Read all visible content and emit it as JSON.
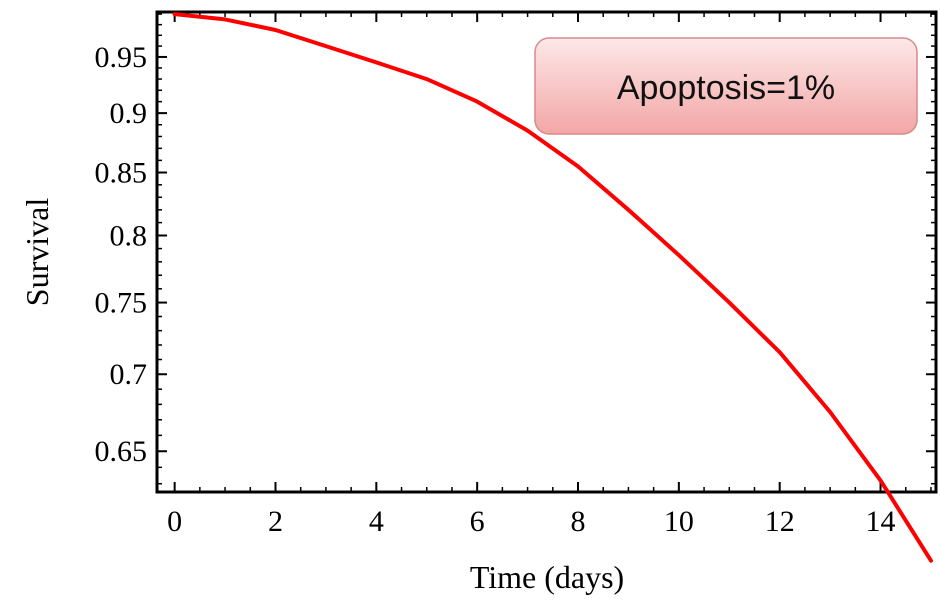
{
  "chart_data": {
    "type": "line",
    "xlabel": "Time (days)",
    "ylabel": "Survival",
    "xlim": [
      -0.35,
      15.1
    ],
    "ylim": [
      0.625,
      0.992
    ],
    "x_ticks": [
      0,
      2,
      4,
      6,
      8,
      10,
      12,
      14
    ],
    "x_tick_labels": [
      "0",
      "2",
      "4",
      "6",
      "8",
      "10",
      "12",
      "14"
    ],
    "y_ticks": [
      0.65,
      0.7,
      0.75,
      0.8,
      0.85,
      0.9,
      0.95
    ],
    "y_tick_labels": [
      "0.65",
      "0.7",
      "0.75",
      "0.8",
      "0.85",
      "0.9",
      "0.95"
    ],
    "y_scale": "log",
    "grid": false,
    "annotation": "Apoptosis=1%",
    "annotation_position": "top-right",
    "series": [
      {
        "color": "#ff0000",
        "x": [
          0,
          1,
          2,
          3,
          4,
          5,
          6,
          7,
          8,
          9,
          10,
          11,
          12,
          13,
          14,
          15
        ],
        "y": [
          0.99,
          0.985,
          0.975,
          0.96,
          0.945,
          0.93,
          0.91,
          0.885,
          0.855,
          0.82,
          0.785,
          0.75,
          0.715,
          0.675,
          0.632,
          0.585
        ]
      }
    ]
  }
}
